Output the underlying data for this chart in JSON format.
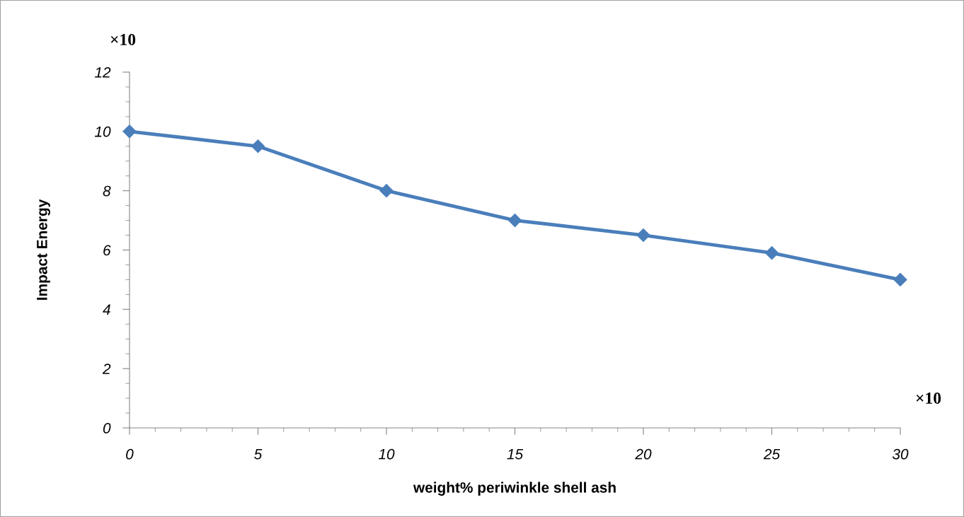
{
  "chart_data": {
    "type": "line",
    "xlabel": "weight% periwinkle shell ash",
    "ylabel": "Impact Energy",
    "x": [
      0,
      5,
      10,
      15,
      20,
      25,
      30
    ],
    "series": [
      {
        "color": "#4a7ebb",
        "values": [
          10,
          9.5,
          8,
          7,
          6.5,
          5.9,
          5
        ]
      }
    ],
    "xlim": [
      0,
      30
    ],
    "xticks": [
      0,
      5,
      10,
      15,
      20,
      25,
      30
    ],
    "ylim": [
      0,
      12
    ],
    "yticks": [
      0,
      2,
      4,
      6,
      8,
      10,
      12
    ],
    "marker": "diamond",
    "line_style": "solid",
    "grid": false,
    "legend": false,
    "annotations": [
      "×10",
      "×10"
    ]
  }
}
